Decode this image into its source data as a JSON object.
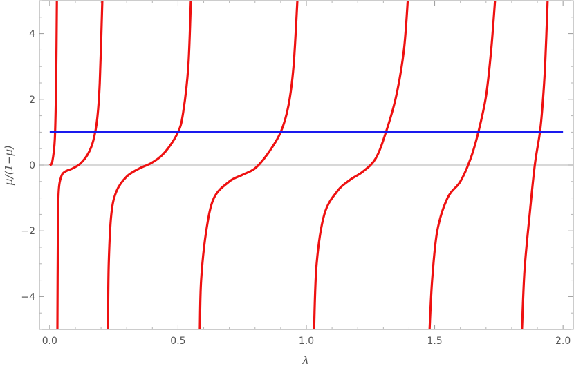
{
  "chart_data": {
    "type": "line",
    "title": "",
    "xlabel": "λ",
    "ylabel": "μ/(1−μ)",
    "xlim": [
      -0.04,
      2.04
    ],
    "ylim": [
      -5,
      5
    ],
    "xticks": [
      {
        "value": 0.0,
        "label": "0.0"
      },
      {
        "value": 0.5,
        "label": "0.5"
      },
      {
        "value": 1.0,
        "label": "1.0"
      },
      {
        "value": 1.5,
        "label": "1.5"
      },
      {
        "value": 2.0,
        "label": "2.0"
      }
    ],
    "yticks": [
      {
        "value": -4,
        "label": "−4"
      },
      {
        "value": -2,
        "label": "−2"
      },
      {
        "value": 0,
        "label": "0"
      },
      {
        "value": 2,
        "label": "2"
      },
      {
        "value": 4,
        "label": "4"
      }
    ],
    "grid": false,
    "frame_color": "#9a9a9a",
    "zero_line_color": "#b0b0b0",
    "series": [
      {
        "color": "#ee1111",
        "branches": [
          {
            "x": [
              0.0,
              0.01,
              0.02,
              0.025,
              0.028
            ],
            "y": [
              0.0,
              0.1,
              0.8,
              2.5,
              5.0
            ]
          },
          {
            "x": [
              0.03,
              0.032,
              0.035,
              0.045,
              0.06,
              0.09,
              0.12,
              0.15,
              0.17,
              0.185,
              0.195,
              0.205
            ],
            "y": [
              -5.0,
              -2.0,
              -0.8,
              -0.35,
              -0.2,
              -0.1,
              0.05,
              0.35,
              0.75,
              1.4,
              2.5,
              5.0
            ]
          },
          {
            "x": [
              0.227,
              0.23,
              0.24,
              0.26,
              0.3,
              0.35,
              0.4,
              0.45,
              0.5,
              0.52,
              0.54,
              0.55
            ],
            "y": [
              -5.0,
              -3.0,
              -1.5,
              -0.8,
              -0.35,
              -0.1,
              0.08,
              0.4,
              1.0,
              1.6,
              3.0,
              5.0
            ]
          },
          {
            "x": [
              0.585,
              0.59,
              0.61,
              0.64,
              0.7,
              0.75,
              0.8,
              0.85,
              0.9,
              0.93,
              0.95,
              0.965
            ],
            "y": [
              -5.0,
              -3.5,
              -2.0,
              -1.0,
              -0.5,
              -0.3,
              -0.1,
              0.35,
              1.0,
              1.8,
              3.0,
              5.0
            ]
          },
          {
            "x": [
              1.03,
              1.04,
              1.07,
              1.12,
              1.17,
              1.22,
              1.27,
              1.31,
              1.35,
              1.38,
              1.395
            ],
            "y": [
              -5.0,
              -3.0,
              -1.5,
              -0.8,
              -0.45,
              -0.2,
              0.2,
              1.0,
              2.1,
              3.5,
              5.0
            ]
          },
          {
            "x": [
              1.48,
              1.49,
              1.51,
              1.55,
              1.6,
              1.64,
              1.67,
              1.7,
              1.72,
              1.735
            ],
            "y": [
              -5.0,
              -3.5,
              -2.0,
              -1.0,
              -0.5,
              0.2,
              1.0,
              2.1,
              3.5,
              5.0
            ]
          },
          {
            "x": [
              1.84,
              1.85,
              1.87,
              1.89,
              1.91,
              1.92,
              1.93,
              1.94
            ],
            "y": [
              -5.0,
              -3.2,
              -1.5,
              0.0,
              1.0,
              1.8,
              3.0,
              5.0
            ]
          }
        ]
      },
      {
        "color": "#1a1aee",
        "branches": [
          {
            "x": [
              0.0,
              2.0
            ],
            "y": [
              1.0,
              1.0
            ]
          }
        ]
      }
    ]
  }
}
